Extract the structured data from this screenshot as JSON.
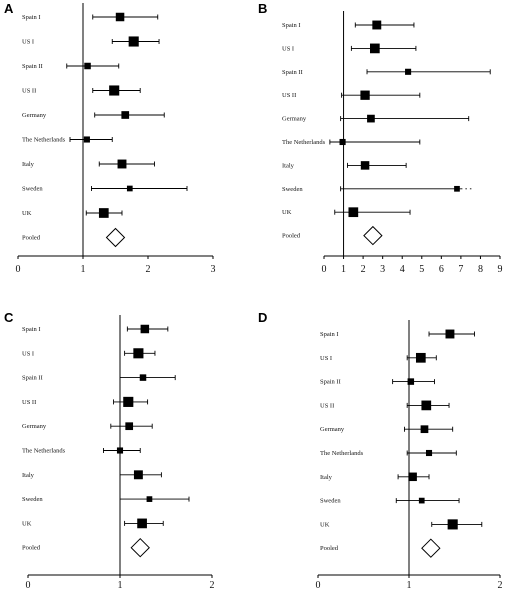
{
  "chart_data": [
    {
      "type": "forest",
      "panel": "A",
      "xlim": [
        0,
        3
      ],
      "ticks": [
        0,
        1,
        2,
        3
      ],
      "null_value": 1,
      "studies": [
        {
          "label": "Spain I",
          "est": 1.57,
          "lo": 1.15,
          "hi": 2.15,
          "weight": 0.75
        },
        {
          "label": "US I",
          "est": 1.78,
          "lo": 1.45,
          "hi": 2.17,
          "weight": 0.95
        },
        {
          "label": "Spain II",
          "est": 1.07,
          "lo": 0.75,
          "hi": 1.55,
          "weight": 0.5
        },
        {
          "label": "US II",
          "est": 1.48,
          "lo": 1.15,
          "hi": 1.88,
          "weight": 0.95
        },
        {
          "label": "Germany",
          "est": 1.65,
          "lo": 1.18,
          "hi": 2.25,
          "weight": 0.65
        },
        {
          "label": "The Netherlands",
          "est": 1.06,
          "lo": 0.8,
          "hi": 1.45,
          "weight": 0.45
        },
        {
          "label": "Italy",
          "est": 1.6,
          "lo": 1.25,
          "hi": 2.1,
          "weight": 0.8
        },
        {
          "label": "Sweden",
          "est": 1.72,
          "lo": 1.13,
          "hi": 2.6,
          "weight": 0.4
        },
        {
          "label": "UK",
          "est": 1.32,
          "lo": 1.05,
          "hi": 1.6,
          "weight": 0.9
        }
      ],
      "pooled": {
        "label": "Pooled",
        "est": 1.5,
        "lo": 1.37,
        "hi": 1.64
      }
    },
    {
      "type": "forest",
      "panel": "B",
      "xlim": [
        0,
        9
      ],
      "ticks": [
        0,
        1,
        2,
        3,
        4,
        5,
        6,
        7,
        8,
        9
      ],
      "null_value": 1,
      "studies": [
        {
          "label": "Spain I",
          "est": 2.7,
          "lo": 1.6,
          "hi": 4.6,
          "weight": 0.8
        },
        {
          "label": "US I",
          "est": 2.6,
          "lo": 1.4,
          "hi": 4.7,
          "weight": 0.9
        },
        {
          "label": "Spain II",
          "est": 4.3,
          "lo": 2.2,
          "hi": 8.5,
          "weight": 0.45
        },
        {
          "label": "US II",
          "est": 2.1,
          "lo": 0.9,
          "hi": 4.9,
          "weight": 0.85
        },
        {
          "label": "Germany",
          "est": 2.4,
          "lo": 0.85,
          "hi": 7.4,
          "weight": 0.65
        },
        {
          "label": "The Netherlands",
          "est": 0.95,
          "lo": 0.3,
          "hi": 4.9,
          "weight": 0.45
        },
        {
          "label": "Italy",
          "est": 2.1,
          "lo": 1.2,
          "hi": 4.2,
          "weight": 0.75
        },
        {
          "label": "Sweden",
          "est": 6.8,
          "lo": 0.85,
          "hi": 7.0,
          "weight": 0.4,
          "upper_truncated": true
        },
        {
          "label": "UK",
          "est": 1.5,
          "lo": 0.55,
          "hi": 4.4,
          "weight": 0.9
        }
      ],
      "pooled": {
        "label": "Pooled",
        "est": 2.5,
        "lo": 1.95,
        "hi": 3.05
      }
    },
    {
      "type": "forest",
      "panel": "C",
      "xlim": [
        0,
        2
      ],
      "ticks": [
        0,
        1,
        2
      ],
      "null_value": 1,
      "studies": [
        {
          "label": "Spain I",
          "est": 1.27,
          "lo": 1.08,
          "hi": 1.52,
          "weight": 0.75
        },
        {
          "label": "US I",
          "est": 1.2,
          "lo": 1.05,
          "hi": 1.38,
          "weight": 0.95
        },
        {
          "label": "Spain II",
          "est": 1.25,
          "lo": 1.0,
          "hi": 1.6,
          "weight": 0.5
        },
        {
          "label": "US II",
          "est": 1.09,
          "lo": 0.93,
          "hi": 1.3,
          "weight": 0.95
        },
        {
          "label": "Germany",
          "est": 1.1,
          "lo": 0.9,
          "hi": 1.35,
          "weight": 0.65
        },
        {
          "label": "The Netherlands",
          "est": 1.0,
          "lo": 0.82,
          "hi": 1.22,
          "weight": 0.45
        },
        {
          "label": "Italy",
          "est": 1.2,
          "lo": 1.0,
          "hi": 1.45,
          "weight": 0.8
        },
        {
          "label": "Sweden",
          "est": 1.32,
          "lo": 1.0,
          "hi": 1.75,
          "weight": 0.4
        },
        {
          "label": "UK",
          "est": 1.24,
          "lo": 1.05,
          "hi": 1.47,
          "weight": 0.9
        }
      ],
      "pooled": {
        "label": "Pooled",
        "est": 1.22,
        "lo": 1.13,
        "hi": 1.31
      }
    },
    {
      "type": "forest",
      "panel": "D",
      "xlim": [
        0,
        2
      ],
      "ticks": [
        0,
        1,
        2
      ],
      "null_value": 1,
      "studies": [
        {
          "label": "Spain I",
          "est": 1.45,
          "lo": 1.22,
          "hi": 1.72,
          "weight": 0.8
        },
        {
          "label": "US I",
          "est": 1.13,
          "lo": 0.98,
          "hi": 1.3,
          "weight": 0.9
        },
        {
          "label": "Spain II",
          "est": 1.02,
          "lo": 0.82,
          "hi": 1.28,
          "weight": 0.5
        },
        {
          "label": "US II",
          "est": 1.19,
          "lo": 0.98,
          "hi": 1.44,
          "weight": 0.9
        },
        {
          "label": "Germany",
          "est": 1.17,
          "lo": 0.95,
          "hi": 1.48,
          "weight": 0.65
        },
        {
          "label": "The Netherlands",
          "est": 1.22,
          "lo": 0.98,
          "hi": 1.52,
          "weight": 0.45
        },
        {
          "label": "Italy",
          "est": 1.04,
          "lo": 0.88,
          "hi": 1.22,
          "weight": 0.75
        },
        {
          "label": "Sweden",
          "est": 1.14,
          "lo": 0.86,
          "hi": 1.55,
          "weight": 0.4
        },
        {
          "label": "UK",
          "est": 1.48,
          "lo": 1.25,
          "hi": 1.8,
          "weight": 0.95
        }
      ],
      "pooled": {
        "label": "Pooled",
        "est": 1.24,
        "lo": 1.14,
        "hi": 1.34
      }
    }
  ]
}
